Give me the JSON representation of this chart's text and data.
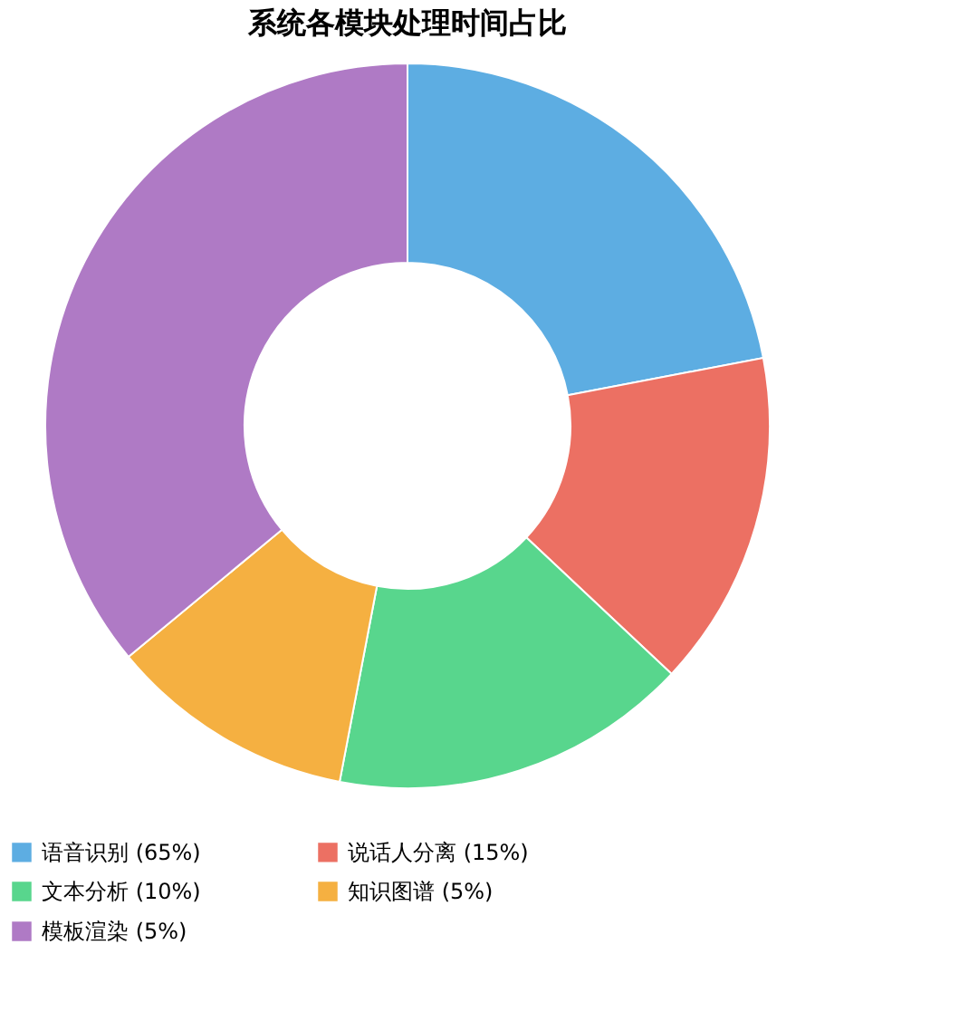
{
  "chart_data": {
    "type": "donut",
    "title": "系统各模块处理时间占比",
    "categories": [
      "语音识别 (65%)",
      "说话人分离 (15%)",
      "文本分析 (10%)",
      "知识图谱 (5%)",
      "模板渲染 (5%)"
    ],
    "values": [
      22,
      15,
      16,
      11,
      36
    ],
    "colors": [
      "#5dade2",
      "#ec7063",
      "#58d68d",
      "#f5b041",
      "#af7ac5"
    ],
    "legend": "bottom"
  }
}
